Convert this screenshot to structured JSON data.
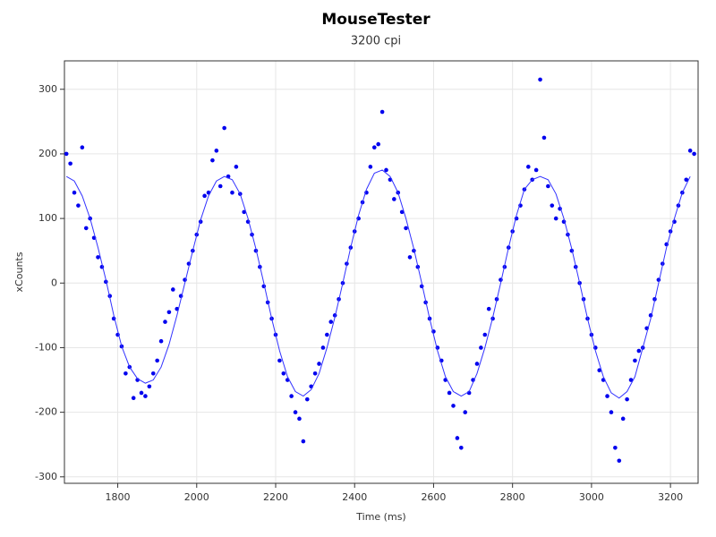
{
  "chart_data": {
    "type": "scatter",
    "title": "MouseTester",
    "subtitle": "3200 cpi",
    "x_label": "Time (ms)",
    "y_label": "xCounts",
    "xlim": [
      1665,
      3270
    ],
    "ylim": [
      -310,
      344
    ],
    "xticks": [
      1800,
      2000,
      2200,
      2400,
      2600,
      2800,
      3000,
      3200
    ],
    "yticks": [
      -300,
      -200,
      -100,
      0,
      100,
      200,
      300
    ],
    "grid": true,
    "series": [
      {
        "type": "scatter",
        "color": "#0000ee",
        "x": [
          1670,
          1680,
          1690,
          1700,
          1710,
          1720,
          1730,
          1740,
          1750,
          1760,
          1770,
          1780,
          1790,
          1800,
          1810,
          1820,
          1830,
          1840,
          1850,
          1860,
          1870,
          1880,
          1890,
          1900,
          1910,
          1920,
          1930,
          1940,
          1950,
          1960,
          1970,
          1980,
          1990,
          2000,
          2010,
          2020,
          2030,
          2040,
          2050,
          2060,
          2070,
          2080,
          2090,
          2100,
          2110,
          2120,
          2130,
          2140,
          2150,
          2160,
          2170,
          2180,
          2190,
          2200,
          2210,
          2220,
          2230,
          2240,
          2250,
          2260,
          2270,
          2280,
          2290,
          2300,
          2310,
          2320,
          2330,
          2340,
          2350,
          2360,
          2370,
          2380,
          2390,
          2400,
          2410,
          2420,
          2430,
          2440,
          2450,
          2460,
          2470,
          2480,
          2490,
          2500,
          2510,
          2520,
          2530,
          2540,
          2550,
          2560,
          2570,
          2580,
          2590,
          2600,
          2610,
          2620,
          2630,
          2640,
          2650,
          2660,
          2670,
          2680,
          2690,
          2700,
          2710,
          2720,
          2730,
          2740,
          2750,
          2760,
          2770,
          2780,
          2790,
          2800,
          2810,
          2820,
          2830,
          2840,
          2850,
          2860,
          2870,
          2880,
          2890,
          2900,
          2910,
          2920,
          2930,
          2940,
          2950,
          2960,
          2970,
          2980,
          2990,
          3000,
          3010,
          3020,
          3030,
          3040,
          3050,
          3060,
          3070,
          3080,
          3090,
          3100,
          3110,
          3120,
          3130,
          3140,
          3150,
          3160,
          3170,
          3180,
          3190,
          3200,
          3210,
          3220,
          3230,
          3240,
          3250,
          3260
        ],
        "values": [
          200,
          185,
          140,
          120,
          210,
          85,
          100,
          70,
          40,
          25,
          2,
          -20,
          -55,
          -80,
          -98,
          -140,
          -130,
          -178,
          -150,
          -170,
          -175,
          -160,
          -140,
          -120,
          -90,
          -60,
          -45,
          -10,
          -40,
          -20,
          5,
          30,
          50,
          75,
          95,
          135,
          140,
          190,
          205,
          150,
          240,
          165,
          140,
          180,
          138,
          110,
          95,
          75,
          50,
          25,
          -5,
          -30,
          -55,
          -80,
          -120,
          -140,
          -150,
          -175,
          -200,
          -210,
          -245,
          -180,
          -160,
          -140,
          -125,
          -100,
          -80,
          -60,
          -50,
          -25,
          0,
          30,
          55,
          80,
          100,
          125,
          140,
          180,
          210,
          215,
          265,
          175,
          160,
          130,
          140,
          110,
          85,
          40,
          50,
          25,
          -5,
          -30,
          -55,
          -75,
          -100,
          -120,
          -150,
          -170,
          -190,
          -240,
          -255,
          -200,
          -170,
          -150,
          -125,
          -100,
          -80,
          -40,
          -55,
          -25,
          5,
          25,
          55,
          80,
          100,
          120,
          145,
          180,
          160,
          175,
          315,
          225,
          150,
          120,
          100,
          115,
          95,
          75,
          50,
          25,
          0,
          -25,
          -55,
          -80,
          -100,
          -135,
          -150,
          -175,
          -200,
          -255,
          -275,
          -210,
          -180,
          -150,
          -120,
          -105,
          -100,
          -70,
          -50,
          -25,
          5,
          30,
          60,
          80,
          95,
          120,
          140,
          160,
          205,
          200
        ]
      },
      {
        "type": "line",
        "color": "#3333ff",
        "x": [
          1670,
          1690,
          1710,
          1730,
          1750,
          1770,
          1790,
          1810,
          1830,
          1850,
          1870,
          1890,
          1910,
          1930,
          1950,
          1970,
          1990,
          2010,
          2030,
          2050,
          2070,
          2090,
          2110,
          2130,
          2150,
          2170,
          2190,
          2210,
          2230,
          2250,
          2270,
          2290,
          2310,
          2330,
          2350,
          2370,
          2390,
          2410,
          2430,
          2450,
          2470,
          2490,
          2510,
          2530,
          2550,
          2570,
          2590,
          2610,
          2630,
          2650,
          2670,
          2690,
          2710,
          2730,
          2750,
          2770,
          2790,
          2810,
          2830,
          2850,
          2870,
          2890,
          2910,
          2930,
          2950,
          2970,
          2990,
          3010,
          3030,
          3050,
          3070,
          3090,
          3110,
          3130,
          3150,
          3170,
          3190,
          3210,
          3230,
          3250
        ],
        "values": [
          165,
          158,
          135,
          100,
          55,
          5,
          -50,
          -98,
          -130,
          -148,
          -155,
          -150,
          -130,
          -95,
          -50,
          0,
          50,
          98,
          135,
          158,
          165,
          160,
          138,
          100,
          53,
          0,
          -55,
          -105,
          -145,
          -168,
          -175,
          -165,
          -140,
          -100,
          -53,
          0,
          55,
          105,
          145,
          170,
          175,
          165,
          140,
          100,
          53,
          0,
          -55,
          -105,
          -145,
          -168,
          -175,
          -168,
          -140,
          -100,
          -53,
          0,
          55,
          105,
          145,
          160,
          165,
          160,
          138,
          100,
          53,
          0,
          -55,
          -105,
          -145,
          -170,
          -178,
          -168,
          -145,
          -100,
          -55,
          0,
          55,
          100,
          140,
          165
        ]
      }
    ]
  }
}
